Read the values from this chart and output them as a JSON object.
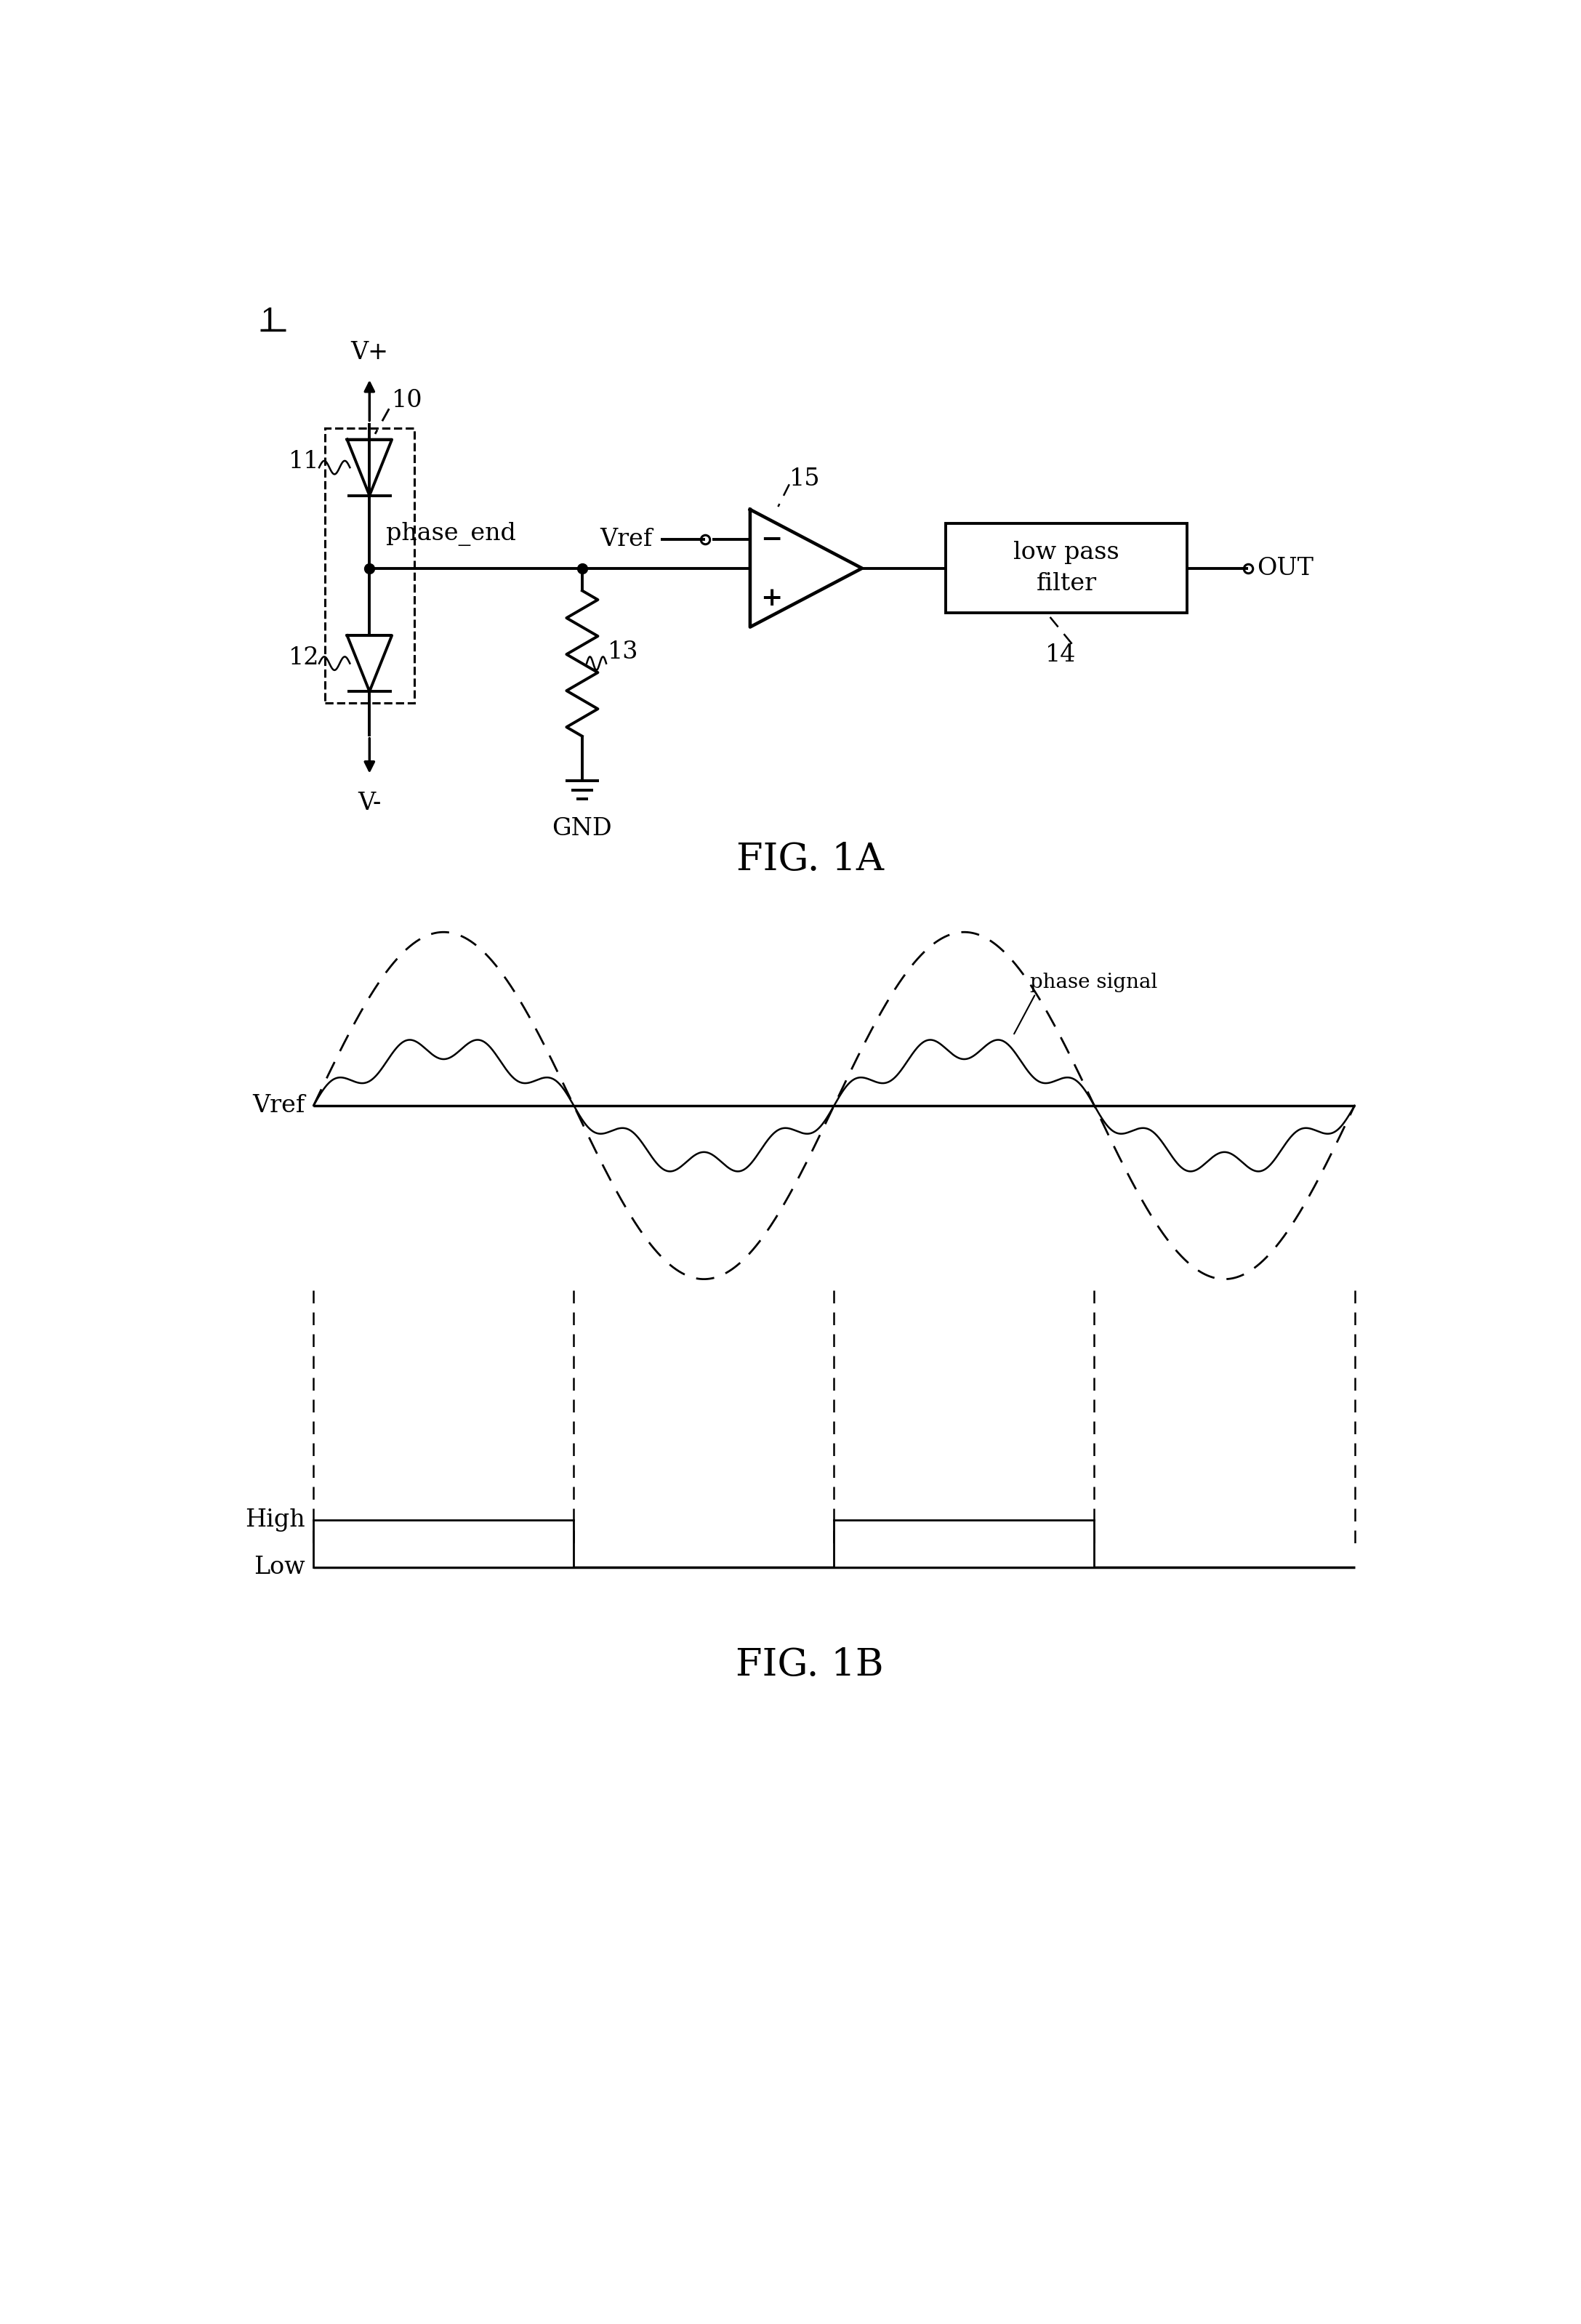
{
  "background_color": "#ffffff",
  "fig_width": 21.75,
  "fig_height": 31.97,
  "fig1a_title": "FIG. 1A",
  "fig1b_title": "FIG. 1B",
  "label_1": "1",
  "label_10": "10",
  "label_11": "11",
  "label_12": "12",
  "label_13": "13",
  "label_14": "14",
  "label_15": "15",
  "label_vplus": "V+",
  "label_vminus": "V-",
  "label_vref": "Vref",
  "label_gnd": "GND",
  "label_phase_end": "phase_end",
  "label_out": "OUT",
  "label_phase_signal": "phase signal",
  "label_vref_b": "Vref",
  "label_high": "High",
  "label_low": "Low",
  "lw_main": 2.8,
  "lw_thin": 1.8,
  "fontsize_label": 24,
  "fontsize_title": 38,
  "fontsize_small": 20
}
